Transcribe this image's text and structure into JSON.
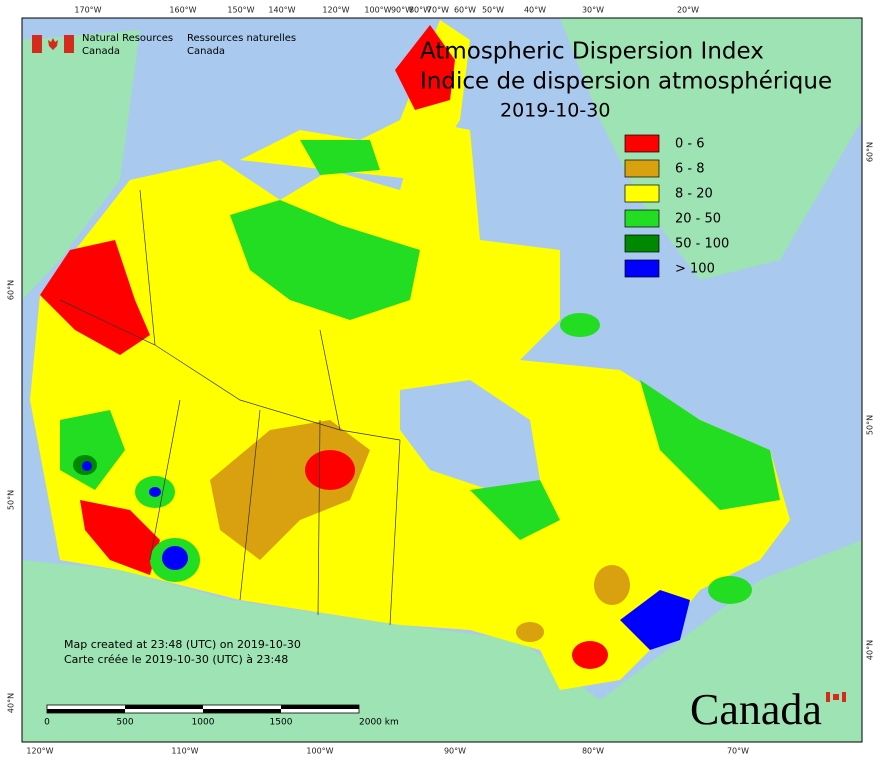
{
  "agency": {
    "en": [
      "Natural Resources",
      "Canada"
    ],
    "fr": [
      "Ressources naturelles",
      "Canada"
    ]
  },
  "title": [
    "Atmospheric Dispersion Index",
    "Indice de dispersion atmosphérique",
    "2019-10-30"
  ],
  "legend": [
    {
      "label": "0 - 6",
      "color": "#ff0000"
    },
    {
      "label": "6 - 8",
      "color": "#d9a010"
    },
    {
      "label": "8 - 20",
      "color": "#ffff00"
    },
    {
      "label": "20 - 50",
      "color": "#22dd22"
    },
    {
      "label": "50 - 100",
      "color": "#008800"
    },
    {
      "label": "> 100",
      "color": "#0000ff"
    }
  ],
  "graticule": {
    "top": [
      "170°W",
      "160°W",
      "150°W",
      "140°W",
      "120°W",
      "100°W",
      "90°W",
      "80°W",
      "70°W",
      "60°W",
      "50°W",
      "40°W",
      "30°W",
      "20°W"
    ],
    "bottom": [
      "120°W",
      "110°W",
      "100°W",
      "90°W",
      "80°W",
      "70°W"
    ],
    "left": [
      "60°N",
      "50°N",
      "40°N"
    ],
    "right": [
      "60°N",
      "50°N",
      "40°N"
    ]
  },
  "notes": [
    "Map created at 23:48 (UTC) on 2019-10-30",
    "Carte créée le 2019-10-30 (UTC) à 23:48"
  ],
  "scale_bar": [
    "0",
    "500",
    "1000",
    "1500",
    "2000 km"
  ],
  "wordmark": "Canada"
}
